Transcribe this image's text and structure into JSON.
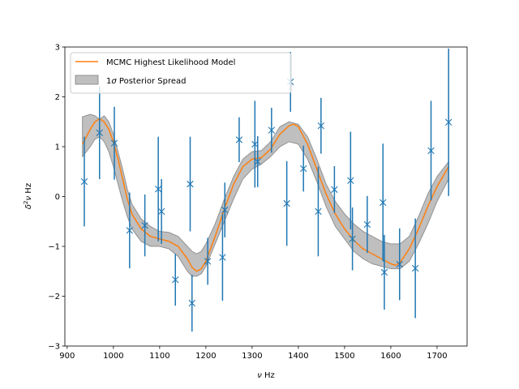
{
  "chart_data": {
    "type": "scatter",
    "title": "",
    "xlabel_prefix": "ν",
    "xlabel_unit": "Hz",
    "ylabel_prefix": "δ",
    "ylabel_sup": "2",
    "ylabel_mid": "ν",
    "ylabel_unit": "Hz",
    "xlim": [
      895,
      1765
    ],
    "ylim": [
      -3,
      3
    ],
    "xticks": [
      900,
      1000,
      1100,
      1200,
      1300,
      1400,
      1500,
      1600,
      1700
    ],
    "yticks": [
      -3,
      -2,
      -1,
      0,
      1,
      2,
      3
    ],
    "xtick_labels": [
      "900",
      "1000",
      "1100",
      "1200",
      "1300",
      "1400",
      "1500",
      "1600",
      "1700"
    ],
    "ytick_labels": [
      "−3",
      "−2",
      "−1",
      "0",
      "1",
      "2",
      "3"
    ],
    "legend": {
      "placement": "upper-left",
      "entries": [
        {
          "label": "MCMC Highest Likelihood Model",
          "kind": "line",
          "color": "#ff7f0e"
        },
        {
          "label_prefix": "1",
          "label_sigma": "σ",
          "label_suffix": " Posterior Spread",
          "kind": "patch",
          "color": "#808080"
        }
      ]
    },
    "colors": {
      "points": "#1f77b4",
      "model": "#ff7f0e",
      "band": "#808080"
    },
    "observations": {
      "name": "data",
      "points": [
        {
          "x": 937,
          "y": 0.3,
          "err": 0.9
        },
        {
          "x": 970,
          "y": 1.28,
          "err": 0.93
        },
        {
          "x": 1002,
          "y": 1.07,
          "err": 0.73
        },
        {
          "x": 1035,
          "y": -0.68,
          "err": 0.76
        },
        {
          "x": 1068,
          "y": -0.58,
          "err": 0.62
        },
        {
          "x": 1097,
          "y": 0.15,
          "err": 1.05
        },
        {
          "x": 1104,
          "y": -0.3,
          "err": 0.65
        },
        {
          "x": 1134,
          "y": -1.67,
          "err": 0.52
        },
        {
          "x": 1166,
          "y": 0.25,
          "err": 0.95
        },
        {
          "x": 1170,
          "y": -2.14,
          "err": 0.57
        },
        {
          "x": 1204,
          "y": -1.3,
          "err": 0.47
        },
        {
          "x": 1236,
          "y": -1.22,
          "err": 0.87
        },
        {
          "x": 1241,
          "y": -0.27,
          "err": 0.55
        },
        {
          "x": 1272,
          "y": 1.14,
          "err": 0.45
        },
        {
          "x": 1306,
          "y": 1.05,
          "err": 0.87
        },
        {
          "x": 1312,
          "y": 0.7,
          "err": 0.51
        },
        {
          "x": 1342,
          "y": 1.33,
          "err": 0.45
        },
        {
          "x": 1375,
          "y": -0.14,
          "err": 0.85
        },
        {
          "x": 1383,
          "y": 2.3,
          "err": 0.6
        },
        {
          "x": 1411,
          "y": 0.56,
          "err": 0.46
        },
        {
          "x": 1443,
          "y": -0.3,
          "err": 0.9
        },
        {
          "x": 1449,
          "y": 1.42,
          "err": 0.56
        },
        {
          "x": 1478,
          "y": 0.14,
          "err": 0.47
        },
        {
          "x": 1513,
          "y": 0.32,
          "err": 0.98
        },
        {
          "x": 1517,
          "y": -0.85,
          "err": 0.63
        },
        {
          "x": 1549,
          "y": -0.56,
          "err": 0.57
        },
        {
          "x": 1583,
          "y": -0.12,
          "err": 1.18
        },
        {
          "x": 1586,
          "y": -1.52,
          "err": 0.75
        },
        {
          "x": 1619,
          "y": -1.36,
          "err": 0.72
        },
        {
          "x": 1653,
          "y": -1.44,
          "err": 1.0
        },
        {
          "x": 1687,
          "y": 0.92,
          "err": 1.0
        },
        {
          "x": 1725,
          "y": 1.49,
          "err": 1.48
        }
      ]
    },
    "model": {
      "x": [
        933,
        950,
        960,
        970,
        980,
        990,
        1000,
        1010,
        1020,
        1030,
        1040,
        1060,
        1080,
        1100,
        1120,
        1140,
        1160,
        1170,
        1180,
        1190,
        1200,
        1210,
        1220,
        1240,
        1260,
        1280,
        1300,
        1320,
        1340,
        1360,
        1380,
        1390,
        1400,
        1420,
        1440,
        1460,
        1480,
        1500,
        1520,
        1540,
        1560,
        1580,
        1600,
        1610,
        1620,
        1640,
        1660,
        1680,
        1700,
        1725
      ],
      "y": [
        1.05,
        1.35,
        1.5,
        1.56,
        1.5,
        1.35,
        1.1,
        0.75,
        0.35,
        -0.05,
        -0.35,
        -0.65,
        -0.8,
        -0.85,
        -0.9,
        -1.0,
        -1.25,
        -1.42,
        -1.5,
        -1.45,
        -1.3,
        -1.05,
        -0.8,
        -0.25,
        0.25,
        0.6,
        0.75,
        0.78,
        0.95,
        1.25,
        1.42,
        1.45,
        1.4,
        1.05,
        0.55,
        0.05,
        -0.35,
        -0.65,
        -0.88,
        -1.05,
        -1.15,
        -1.25,
        -1.35,
        -1.38,
        -1.32,
        -1.05,
        -0.65,
        -0.2,
        0.2,
        0.6
      ]
    },
    "band": {
      "x": [
        933,
        950,
        960,
        970,
        980,
        990,
        1000,
        1010,
        1020,
        1030,
        1040,
        1060,
        1080,
        1100,
        1120,
        1140,
        1160,
        1170,
        1180,
        1190,
        1200,
        1220,
        1240,
        1260,
        1280,
        1300,
        1320,
        1340,
        1360,
        1380,
        1400,
        1420,
        1440,
        1460,
        1480,
        1500,
        1520,
        1540,
        1560,
        1580,
        1600,
        1620,
        1640,
        1660,
        1680,
        1700,
        1725
      ],
      "lower": [
        0.8,
        1.0,
        1.15,
        1.2,
        1.1,
        0.9,
        0.6,
        0.25,
        -0.1,
        -0.4,
        -0.65,
        -0.9,
        -1.0,
        -1.0,
        -1.05,
        -1.2,
        -1.5,
        -1.6,
        -1.6,
        -1.55,
        -1.4,
        -0.95,
        -0.5,
        -0.05,
        0.35,
        0.55,
        0.65,
        0.8,
        1.0,
        1.1,
        1.05,
        0.75,
        0.3,
        -0.2,
        -0.6,
        -0.85,
        -1.1,
        -1.25,
        -1.35,
        -1.4,
        -1.45,
        -1.45,
        -1.3,
        -0.95,
        -0.55,
        -0.1,
        0.35
      ],
      "upper": [
        1.6,
        1.65,
        1.62,
        1.55,
        1.62,
        1.5,
        1.25,
        0.9,
        0.55,
        0.15,
        -0.15,
        -0.45,
        -0.6,
        -0.7,
        -0.72,
        -0.8,
        -1.0,
        -1.1,
        -1.15,
        -1.1,
        -0.95,
        -0.55,
        -0.05,
        0.4,
        0.75,
        0.9,
        0.92,
        1.1,
        1.4,
        1.5,
        1.45,
        1.2,
        0.75,
        0.25,
        -0.1,
        -0.35,
        -0.55,
        -0.7,
        -0.8,
        -0.9,
        -0.95,
        -0.95,
        -0.8,
        -0.4,
        0.05,
        0.4,
        0.7
      ]
    }
  }
}
